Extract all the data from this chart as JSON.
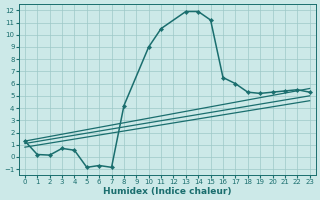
{
  "xlabel": "Humidex (Indice chaleur)",
  "bg_color": "#cce9e8",
  "grid_color": "#9dc8c8",
  "line_color": "#1a6e6e",
  "xlim": [
    -0.5,
    23.5
  ],
  "ylim": [
    -1.5,
    12.5
  ],
  "xticks": [
    0,
    1,
    2,
    3,
    4,
    5,
    6,
    7,
    8,
    9,
    10,
    11,
    12,
    13,
    14,
    15,
    16,
    17,
    18,
    19,
    20,
    21,
    22,
    23
  ],
  "yticks": [
    -1,
    0,
    1,
    2,
    3,
    4,
    5,
    6,
    7,
    8,
    9,
    10,
    11,
    12
  ],
  "curve_main": {
    "x": [
      0,
      1,
      2,
      3,
      4,
      5,
      6,
      7,
      8,
      10,
      11,
      13,
      14,
      15,
      16,
      17,
      18,
      19,
      20,
      21,
      22,
      23
    ],
    "y": [
      1.3,
      0.2,
      0.15,
      0.7,
      0.55,
      -0.85,
      -0.7,
      -0.85,
      4.2,
      9.0,
      10.5,
      11.9,
      11.9,
      11.2,
      6.5,
      6.0,
      5.3,
      5.2,
      5.3,
      5.4,
      5.5,
      5.3
    ]
  },
  "reg_lines": [
    {
      "x": [
        0,
        23
      ],
      "y": [
        1.3,
        5.6
      ]
    },
    {
      "x": [
        0,
        23
      ],
      "y": [
        1.1,
        5.0
      ]
    },
    {
      "x": [
        0,
        23
      ],
      "y": [
        0.8,
        4.6
      ]
    }
  ],
  "marker": "D",
  "markersize": 2.2,
  "linewidth": 1.1,
  "reg_linewidth": 0.9,
  "xlabel_fontsize": 6.5,
  "tick_fontsize": 5.0
}
